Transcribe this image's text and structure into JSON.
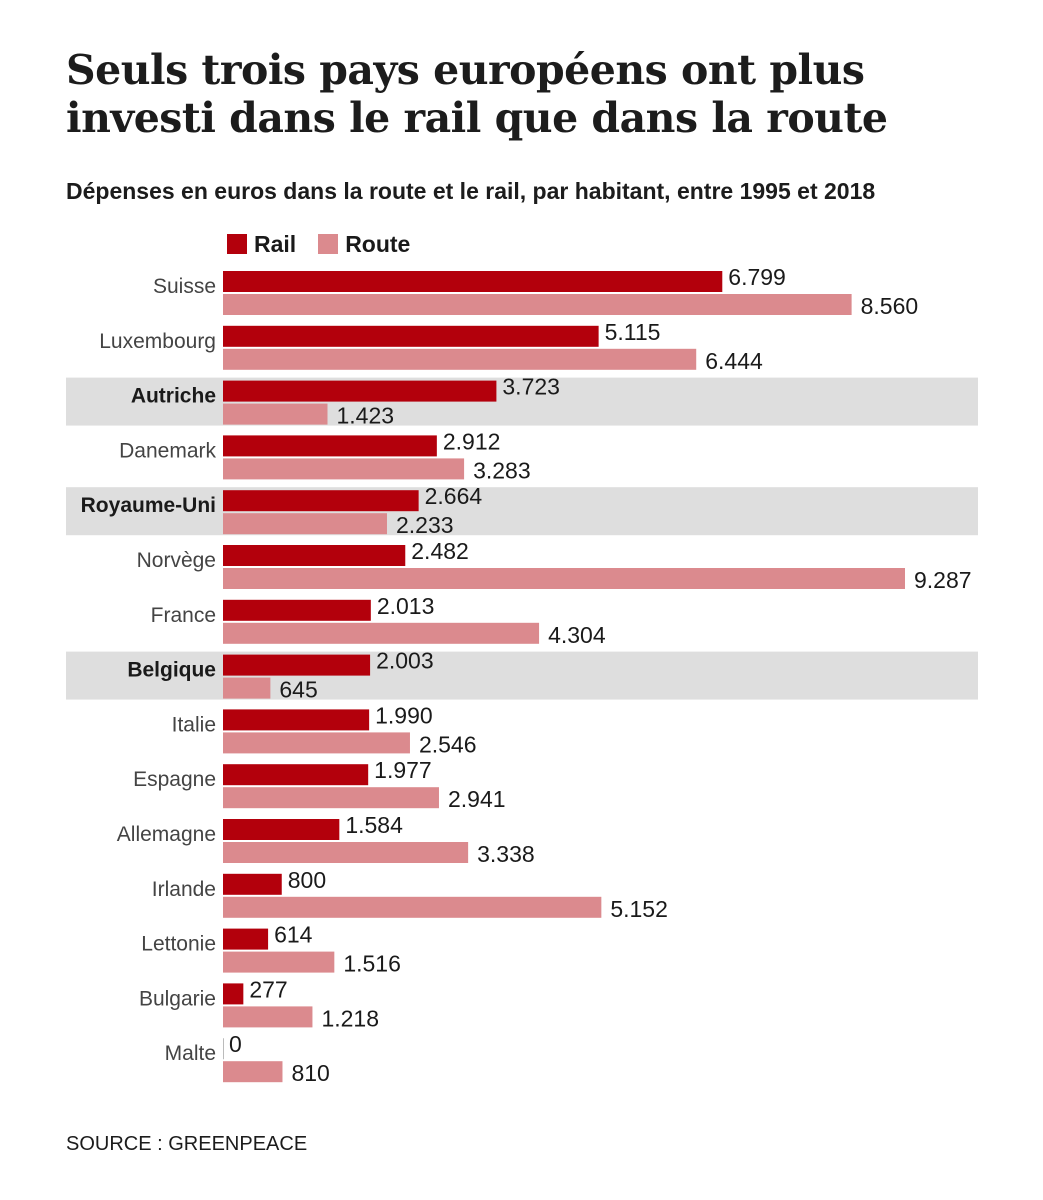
{
  "title": "Seuls trois pays européens ont plus investi dans le rail que dans la route",
  "subtitle": "Dépenses en euros dans la route et le rail, par habitant, entre 1995 et 2018",
  "source": "SOURCE : GREENPEACE",
  "colors": {
    "rail": "#b3000c",
    "route": "#db8a8e",
    "highlight": "#dedede",
    "text": "#1c1c1c"
  },
  "chart_data": {
    "type": "bar",
    "orientation": "horizontal",
    "title": "Seuls trois pays européens ont plus investi dans le rail que dans la route",
    "subtitle": "Dépenses en euros dans la route et le rail, par habitant, entre 1995 et 2018",
    "legend": {
      "placement": "top-left",
      "entries": [
        "Rail",
        "Route"
      ]
    },
    "grid": false,
    "xlim": [
      0,
      10000
    ],
    "categories": [
      "Suisse",
      "Luxembourg",
      "Autriche",
      "Danemark",
      "Royaume-Uni",
      "Norvège",
      "France",
      "Belgique",
      "Italie",
      "Espagne",
      "Allemagne",
      "Irlande",
      "Lettonie",
      "Bulgarie",
      "Malte"
    ],
    "highlighted": [
      "Autriche",
      "Royaume-Uni",
      "Belgique"
    ],
    "series": [
      {
        "name": "Rail",
        "values": [
          6799,
          5115,
          3723,
          2912,
          2664,
          2482,
          2013,
          2003,
          1990,
          1977,
          1584,
          800,
          614,
          277,
          0
        ],
        "labels": [
          "6.799",
          "5.115",
          "3.723",
          "2.912",
          "2.664",
          "2.482",
          "2.013",
          "2.003",
          "1.990",
          "1.977",
          "1.584",
          "800",
          "614",
          "277",
          "0"
        ]
      },
      {
        "name": "Route",
        "values": [
          8560,
          6444,
          1423,
          3283,
          2233,
          9287,
          4304,
          645,
          2546,
          2941,
          3338,
          5152,
          1516,
          1218,
          810
        ],
        "labels": [
          "8.560",
          "6.444",
          "1.423",
          "3.283",
          "2.233",
          "9.287",
          "4.304",
          "645",
          "2.546",
          "2.941",
          "3.338",
          "5.152",
          "1.516",
          "1.218",
          "810"
        ]
      }
    ]
  }
}
